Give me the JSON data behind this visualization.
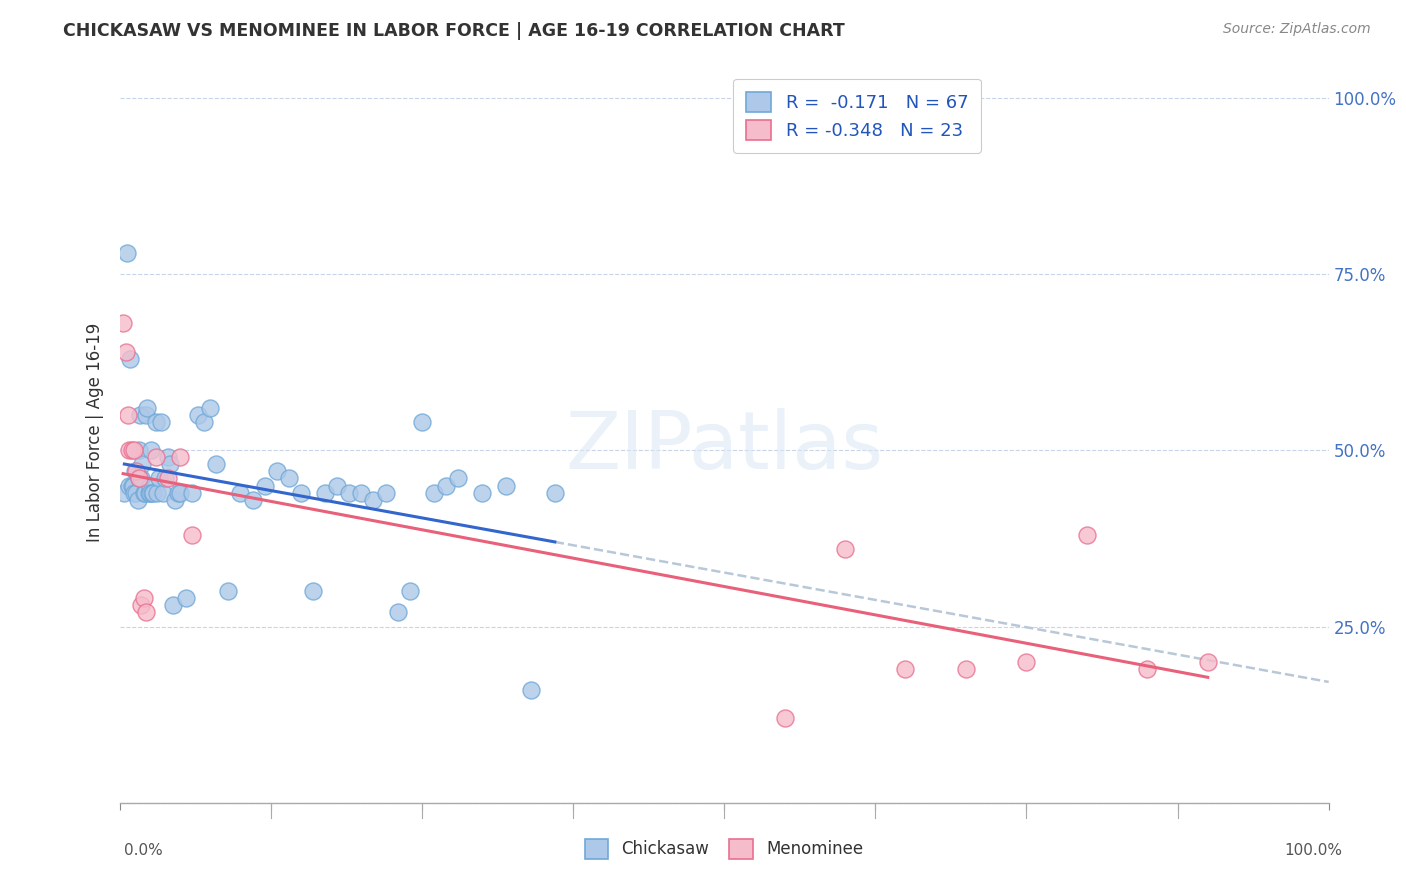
{
  "title": "CHICKASAW VS MENOMINEE IN LABOR FORCE | AGE 16-19 CORRELATION CHART",
  "source": "Source: ZipAtlas.com",
  "ylabel": "In Labor Force | Age 16-19",
  "chickasaw_color": "#adc8e8",
  "chickasaw_edge": "#6fa8d8",
  "menominee_color": "#f5bccb",
  "menominee_edge": "#e87090",
  "trendline_chickasaw_color": "#3366cc",
  "trendline_menominee_color": "#e8607a",
  "trendline_ext_color": "#b8c8d8",
  "legend_r1": "R =  -0.171   N = 67",
  "legend_r2": "R = -0.348   N = 23",
  "chickasaw_x": [
    0.004,
    0.006,
    0.008,
    0.009,
    0.01,
    0.011,
    0.012,
    0.013,
    0.014,
    0.015,
    0.016,
    0.016,
    0.017,
    0.018,
    0.019,
    0.02,
    0.021,
    0.022,
    0.023,
    0.024,
    0.025,
    0.025,
    0.026,
    0.027,
    0.028,
    0.03,
    0.031,
    0.033,
    0.034,
    0.036,
    0.038,
    0.04,
    0.042,
    0.044,
    0.046,
    0.048,
    0.05,
    0.055,
    0.06,
    0.065,
    0.07,
    0.075,
    0.08,
    0.09,
    0.1,
    0.11,
    0.12,
    0.13,
    0.14,
    0.15,
    0.16,
    0.17,
    0.18,
    0.19,
    0.2,
    0.21,
    0.22,
    0.23,
    0.24,
    0.25,
    0.26,
    0.27,
    0.28,
    0.3,
    0.32,
    0.34,
    0.36
  ],
  "chickasaw_y": [
    0.44,
    0.78,
    0.45,
    0.63,
    0.45,
    0.45,
    0.44,
    0.47,
    0.44,
    0.43,
    0.5,
    0.46,
    0.55,
    0.46,
    0.48,
    0.44,
    0.44,
    0.55,
    0.56,
    0.44,
    0.45,
    0.44,
    0.5,
    0.44,
    0.44,
    0.54,
    0.44,
    0.46,
    0.54,
    0.44,
    0.46,
    0.49,
    0.48,
    0.28,
    0.43,
    0.44,
    0.44,
    0.29,
    0.44,
    0.55,
    0.54,
    0.56,
    0.48,
    0.3,
    0.44,
    0.43,
    0.45,
    0.47,
    0.46,
    0.44,
    0.3,
    0.44,
    0.45,
    0.44,
    0.44,
    0.43,
    0.44,
    0.27,
    0.3,
    0.54,
    0.44,
    0.45,
    0.46,
    0.44,
    0.45,
    0.16,
    0.44
  ],
  "menominee_x": [
    0.003,
    0.005,
    0.007,
    0.008,
    0.01,
    0.012,
    0.014,
    0.016,
    0.018,
    0.02,
    0.022,
    0.03,
    0.04,
    0.05,
    0.06,
    0.55,
    0.6,
    0.65,
    0.7,
    0.75,
    0.8,
    0.85,
    0.9
  ],
  "menominee_y": [
    0.68,
    0.64,
    0.55,
    0.5,
    0.5,
    0.5,
    0.47,
    0.46,
    0.28,
    0.29,
    0.27,
    0.49,
    0.46,
    0.49,
    0.38,
    0.12,
    0.36,
    0.19,
    0.19,
    0.2,
    0.38,
    0.19,
    0.2
  ],
  "xlim": [
    0.0,
    1.0
  ],
  "ylim": [
    0.0,
    1.05
  ],
  "right_yticks": [
    0.25,
    0.5,
    0.75,
    1.0
  ],
  "right_ytick_labels": [
    "25.0%",
    "50.0%",
    "75.0%",
    "100.0%"
  ]
}
